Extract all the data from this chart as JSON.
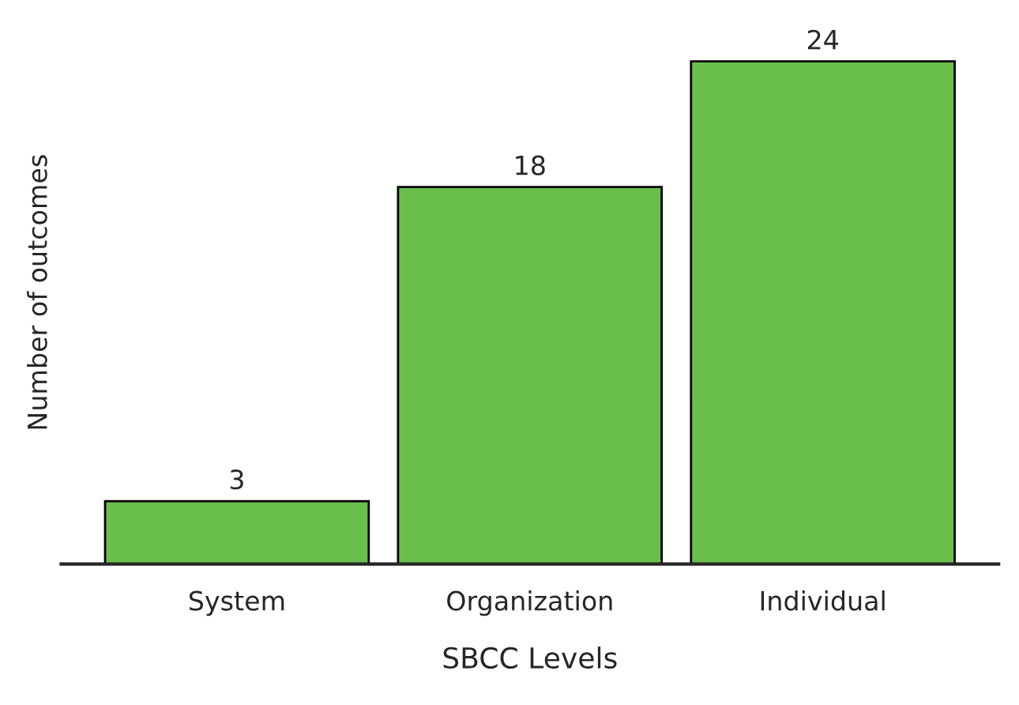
{
  "chart_data": {
    "type": "bar",
    "xlabel": "SBCC Levels",
    "ylabel": "Number of outcomes",
    "categories": [
      "System",
      "Organization",
      "Individual"
    ],
    "values": [
      3,
      18,
      24
    ],
    "color": "#6abf4b",
    "data_labels": true,
    "grid": false,
    "legend": false
  }
}
